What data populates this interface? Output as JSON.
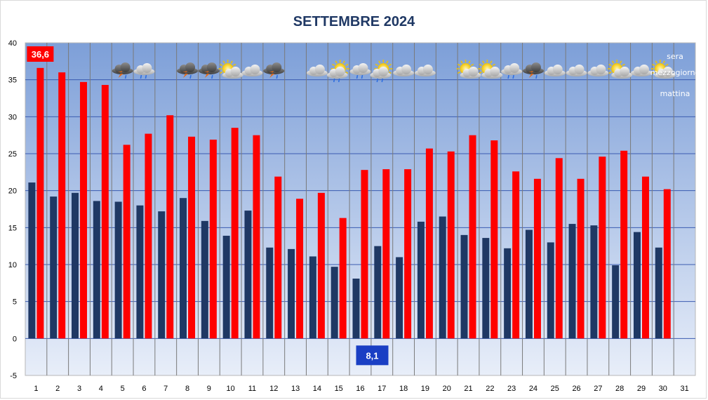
{
  "chart_data": {
    "type": "bar",
    "title": "SETTEMBRE 2024",
    "xlabel": "",
    "ylabel": "",
    "ylim": [
      -5,
      40
    ],
    "yticks": [
      40,
      35,
      30,
      25,
      20,
      15,
      10,
      5,
      0,
      -5
    ],
    "categories": [
      "1",
      "2",
      "3",
      "4",
      "5",
      "6",
      "7",
      "8",
      "9",
      "10",
      "11",
      "12",
      "13",
      "14",
      "15",
      "16",
      "17",
      "18",
      "19",
      "20",
      "21",
      "22",
      "23",
      "24",
      "25",
      "26",
      "27",
      "28",
      "29",
      "30",
      "31"
    ],
    "series": [
      {
        "color": "#1f3864",
        "values": [
          21.1,
          19.2,
          19.7,
          18.6,
          18.5,
          18.0,
          17.2,
          19.0,
          15.9,
          13.9,
          17.3,
          12.3,
          12.1,
          11.1,
          9.7,
          8.1,
          12.5,
          11.0,
          15.8,
          16.5,
          14.0,
          13.6,
          12.2,
          14.7,
          13.0,
          15.5,
          15.3,
          9.9,
          14.4,
          12.3,
          null
        ]
      },
      {
        "color": "#ff0000",
        "values": [
          36.6,
          36.0,
          34.7,
          34.3,
          26.2,
          27.7,
          30.2,
          27.3,
          26.9,
          28.5,
          27.5,
          21.9,
          18.9,
          19.7,
          16.3,
          22.8,
          22.9,
          22.9,
          25.7,
          25.3,
          27.5,
          26.8,
          22.6,
          21.6,
          24.4,
          21.6,
          24.6,
          25.4,
          21.9,
          20.2,
          null
        ]
      }
    ],
    "annotations": [
      {
        "id": "max",
        "text": "36,6",
        "day": "1",
        "color": "#ff0000"
      },
      {
        "id": "min",
        "text": "8,1",
        "day": "16",
        "color": "#1a3fc4"
      }
    ],
    "weather_legend": [
      "sera",
      "mezzogiorno",
      "mattina"
    ],
    "weather_icons": [
      {
        "day": 5,
        "icon": "thunderstorm-icon"
      },
      {
        "day": 6,
        "icon": "rain-cloud-icon"
      },
      {
        "day": 8,
        "icon": "thunderstorm-icon"
      },
      {
        "day": 9,
        "icon": "thunderstorm-icon"
      },
      {
        "day": 10,
        "icon": "sun-cloud-icon"
      },
      {
        "day": 11,
        "icon": "cloud-icon"
      },
      {
        "day": 12,
        "icon": "thunderstorm-icon"
      },
      {
        "day": 14,
        "icon": "cloud-icon"
      },
      {
        "day": 15,
        "icon": "sun-cloud-rain-icon"
      },
      {
        "day": 16,
        "icon": "rain-cloud-icon"
      },
      {
        "day": 17,
        "icon": "sun-cloud-rain-icon"
      },
      {
        "day": 18,
        "icon": "cloud-icon"
      },
      {
        "day": 19,
        "icon": "cloud-icon"
      },
      {
        "day": 21,
        "icon": "sun-cloud-icon"
      },
      {
        "day": 22,
        "icon": "sun-cloud-icon"
      },
      {
        "day": 23,
        "icon": "rain-cloud-icon"
      },
      {
        "day": 24,
        "icon": "thunderstorm-icon"
      },
      {
        "day": 25,
        "icon": "cloud-icon"
      },
      {
        "day": 26,
        "icon": "cloud-icon"
      },
      {
        "day": 27,
        "icon": "cloud-icon"
      },
      {
        "day": 28,
        "icon": "sun-cloud-icon"
      },
      {
        "day": 29,
        "icon": "cloud-icon"
      },
      {
        "day": 30,
        "icon": "sun-cloud-icon"
      }
    ],
    "grid": true,
    "legend": "top-right"
  }
}
